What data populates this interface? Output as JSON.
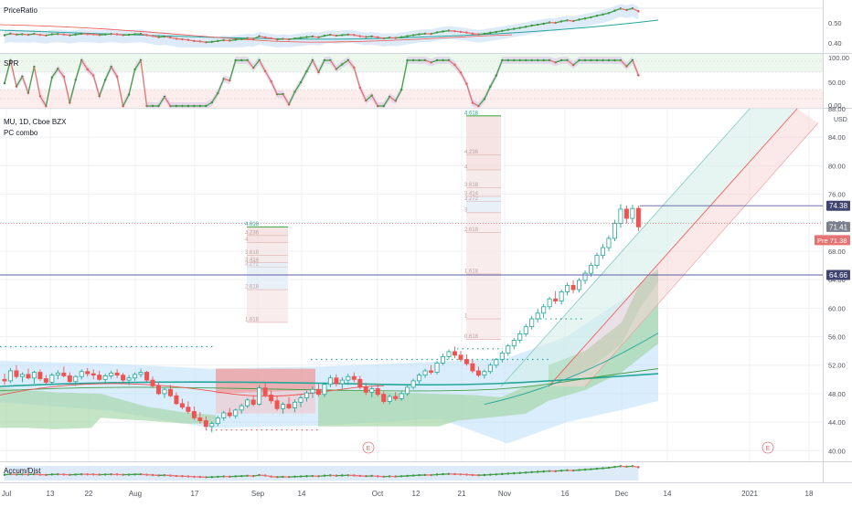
{
  "symbol": "MU",
  "interval": "1D",
  "exchange": "Cboe BZX",
  "title": "MU, 1D, Cboe BZX",
  "indicator": "PC combo",
  "currency": "USD",
  "colors": {
    "bull": "#26a69a",
    "bear": "#ef5350",
    "price_line": "#ef5350",
    "hline": "#5b5fa3",
    "cloud_green": "#a5d6a7",
    "cloud_blue": "#bbdefb",
    "cloud_red": "#ef9a9a",
    "grid": "#eef0f3",
    "axis_text": "#50535e"
  },
  "price_badges": {
    "last_high": "74.38",
    "last": "71.41",
    "prev": "Pre 71.38",
    "level": "64.66"
  },
  "earnings_marker": "E",
  "panes": {
    "price_ratio": {
      "label": "PriceRatio",
      "ticks": [
        "0.50",
        "0.40"
      ]
    },
    "spr": {
      "label": "SPR",
      "ticks": [
        "100.00",
        "50.00",
        "0.00"
      ]
    },
    "accum": {
      "label": "Accum/Dist"
    }
  },
  "fib_labels": {
    "aug": [
      "4.618",
      "4.236",
      "4",
      "3.618",
      "3.414",
      "3.272",
      "2.618",
      "1.618"
    ],
    "oct": [
      "4.618",
      "4.236",
      "4",
      "3.618",
      "3.414",
      "3.272",
      "3",
      "2.618",
      "1.618",
      "1",
      "0.618"
    ]
  },
  "chart_data": {
    "type": "candlestick",
    "title": "MU, 1D, Cboe BZX",
    "ylim": [
      38.5,
      88
    ],
    "y_ticks": [
      "88.00",
      "84.00",
      "80.00",
      "76.00",
      "72.00",
      "68.00",
      "64.00",
      "60.00",
      "56.00",
      "52.00",
      "48.00",
      "44.00",
      "40.00"
    ],
    "x_ticks": [
      "Jul",
      "13",
      "22",
      "Aug",
      "17",
      "Sep",
      "14",
      "Oct",
      "12",
      "21",
      "Nov",
      "16",
      "Dec",
      "14",
      "2021",
      "18"
    ],
    "ohlc": [
      [
        50.0,
        50.8,
        49.2,
        49.8
      ],
      [
        49.8,
        51.6,
        49.5,
        51.2
      ],
      [
        51.2,
        52.0,
        50.1,
        50.4
      ],
      [
        50.4,
        51.0,
        49.6,
        50.7
      ],
      [
        50.7,
        51.5,
        50.0,
        50.2
      ],
      [
        50.2,
        51.2,
        49.4,
        51.0
      ],
      [
        51.0,
        51.4,
        49.8,
        50.1
      ],
      [
        50.1,
        50.6,
        49.3,
        49.6
      ],
      [
        49.6,
        50.9,
        49.2,
        50.6
      ],
      [
        50.6,
        51.3,
        50.0,
        50.9
      ],
      [
        50.9,
        51.8,
        50.3,
        50.5
      ],
      [
        50.5,
        51.0,
        49.5,
        49.7
      ],
      [
        49.7,
        50.6,
        49.1,
        50.4
      ],
      [
        50.4,
        51.4,
        50.0,
        51.1
      ],
      [
        51.1,
        51.6,
        50.4,
        50.8
      ],
      [
        50.8,
        51.4,
        50.0,
        50.6
      ],
      [
        50.6,
        51.2,
        49.8,
        50.0
      ],
      [
        50.0,
        50.8,
        49.4,
        50.5
      ],
      [
        50.5,
        51.2,
        50.1,
        50.9
      ],
      [
        50.9,
        51.4,
        50.2,
        50.6
      ],
      [
        50.6,
        50.9,
        49.6,
        49.9
      ],
      [
        49.9,
        50.6,
        49.2,
        50.2
      ],
      [
        50.2,
        51.0,
        49.8,
        50.7
      ],
      [
        50.7,
        51.5,
        50.3,
        51.0
      ],
      [
        51.0,
        51.2,
        49.7,
        49.9
      ],
      [
        49.9,
        50.4,
        48.8,
        49.1
      ],
      [
        49.1,
        49.6,
        47.8,
        48.0
      ],
      [
        48.0,
        48.9,
        47.4,
        48.6
      ],
      [
        48.6,
        49.2,
        47.5,
        47.7
      ],
      [
        47.7,
        48.2,
        46.4,
        46.6
      ],
      [
        46.6,
        47.3,
        45.8,
        46.1
      ],
      [
        46.1,
        46.9,
        45.2,
        45.5
      ],
      [
        45.5,
        46.2,
        44.3,
        44.6
      ],
      [
        44.6,
        45.4,
        43.8,
        44.2
      ],
      [
        44.2,
        44.8,
        43.0,
        43.4
      ],
      [
        43.4,
        44.1,
        42.6,
        43.8
      ],
      [
        43.8,
        44.9,
        43.4,
        44.6
      ],
      [
        44.6,
        45.6,
        44.2,
        45.3
      ],
      [
        45.3,
        46.0,
        44.6,
        44.9
      ],
      [
        44.9,
        45.9,
        44.5,
        45.7
      ],
      [
        45.7,
        46.6,
        45.2,
        46.3
      ],
      [
        46.3,
        47.4,
        46.0,
        47.1
      ],
      [
        47.1,
        47.8,
        46.2,
        46.5
      ],
      [
        46.5,
        49.2,
        46.3,
        48.8
      ],
      [
        48.8,
        49.5,
        47.5,
        47.8
      ],
      [
        47.8,
        48.4,
        46.6,
        47.0
      ],
      [
        47.0,
        47.6,
        45.6,
        45.9
      ],
      [
        45.9,
        46.8,
        45.2,
        46.5
      ],
      [
        46.5,
        47.5,
        45.8,
        46.0
      ],
      [
        46.0,
        47.2,
        45.4,
        46.8
      ],
      [
        46.8,
        47.8,
        46.1,
        47.4
      ],
      [
        47.4,
        48.4,
        46.9,
        48.1
      ],
      [
        48.1,
        49.0,
        47.4,
        48.6
      ],
      [
        48.6,
        49.4,
        47.6,
        47.9
      ],
      [
        47.9,
        49.6,
        47.5,
        49.3
      ],
      [
        49.3,
        50.6,
        48.9,
        50.2
      ],
      [
        50.2,
        50.7,
        49.0,
        49.4
      ],
      [
        49.4,
        50.3,
        48.7,
        49.9
      ],
      [
        49.9,
        50.8,
        49.2,
        50.4
      ],
      [
        50.4,
        51.0,
        49.6,
        50.0
      ],
      [
        50.0,
        50.5,
        48.6,
        48.9
      ],
      [
        48.9,
        49.5,
        47.8,
        48.2
      ],
      [
        48.2,
        49.0,
        47.5,
        48.7
      ],
      [
        48.7,
        49.4,
        47.6,
        47.9
      ],
      [
        47.9,
        48.3,
        46.6,
        46.9
      ],
      [
        46.9,
        47.9,
        46.5,
        47.6
      ],
      [
        47.6,
        48.2,
        47.0,
        47.3
      ],
      [
        47.3,
        48.3,
        47.0,
        48.0
      ],
      [
        48.0,
        49.2,
        47.7,
        48.9
      ],
      [
        48.9,
        50.1,
        48.6,
        49.8
      ],
      [
        49.8,
        50.9,
        49.4,
        50.6
      ],
      [
        50.6,
        51.5,
        50.2,
        51.2
      ],
      [
        51.2,
        52.0,
        50.7,
        51.0
      ],
      [
        51.0,
        52.6,
        50.7,
        52.3
      ],
      [
        52.3,
        53.6,
        52.0,
        53.2
      ],
      [
        53.2,
        54.2,
        52.8,
        53.9
      ],
      [
        53.9,
        54.6,
        53.0,
        53.4
      ],
      [
        53.4,
        54.0,
        52.5,
        52.8
      ],
      [
        52.8,
        53.5,
        51.9,
        52.2
      ],
      [
        52.2,
        52.8,
        50.9,
        51.2
      ],
      [
        51.2,
        51.8,
        50.3,
        50.6
      ],
      [
        50.6,
        51.4,
        50.1,
        51.1
      ],
      [
        51.1,
        52.3,
        50.8,
        52.0
      ],
      [
        52.0,
        53.0,
        51.6,
        52.8
      ],
      [
        52.8,
        54.0,
        52.4,
        53.7
      ],
      [
        53.7,
        55.0,
        53.3,
        54.7
      ],
      [
        54.7,
        55.8,
        54.2,
        55.5
      ],
      [
        55.5,
        56.9,
        55.1,
        56.4
      ],
      [
        56.4,
        57.8,
        56.0,
        57.4
      ],
      [
        57.4,
        58.9,
        57.0,
        58.5
      ],
      [
        58.5,
        59.9,
        58.0,
        59.3
      ],
      [
        59.3,
        60.6,
        58.6,
        60.2
      ],
      [
        60.2,
        61.6,
        59.8,
        61.3
      ],
      [
        61.3,
        62.4,
        60.6,
        61.0
      ],
      [
        61.0,
        62.6,
        60.5,
        62.3
      ],
      [
        62.3,
        63.6,
        61.8,
        63.2
      ],
      [
        63.2,
        63.9,
        62.1,
        62.6
      ],
      [
        62.6,
        64.2,
        62.2,
        63.9
      ],
      [
        63.9,
        65.3,
        63.4,
        64.9
      ],
      [
        64.9,
        66.4,
        64.4,
        66.0
      ],
      [
        66.0,
        67.8,
        65.6,
        67.4
      ],
      [
        67.4,
        69.0,
        66.9,
        68.5
      ],
      [
        68.5,
        70.2,
        68.0,
        69.8
      ],
      [
        69.8,
        72.4,
        69.4,
        71.9
      ],
      [
        71.9,
        74.6,
        71.3,
        73.9
      ],
      [
        73.9,
        74.4,
        71.9,
        72.6
      ],
      [
        72.6,
        74.5,
        72.0,
        74.0
      ],
      [
        74.0,
        74.4,
        70.8,
        71.41
      ]
    ]
  }
}
